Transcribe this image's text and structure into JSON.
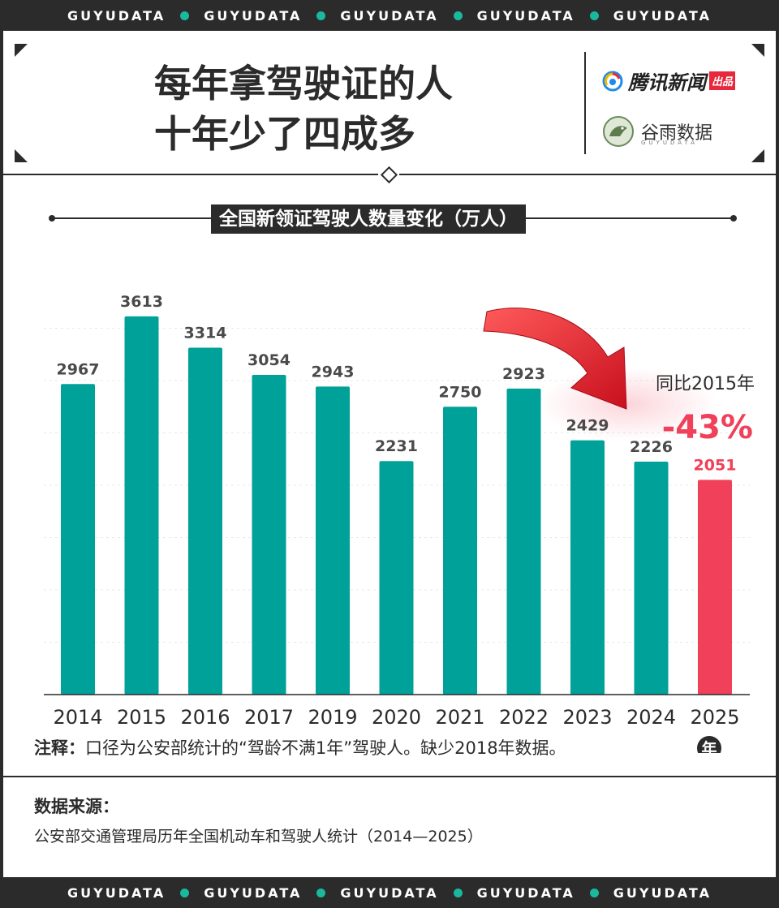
{
  "banner": {
    "word": "GUYUDATA"
  },
  "headline": {
    "line1": "每年拿驾驶证的人",
    "line2": "十年少了四成多"
  },
  "brands": {
    "tencent_name": "腾讯新闻",
    "tencent_tag": "出品",
    "guyu_name": "谷雨数据",
    "guyu_en": "GUYUDATA"
  },
  "colors": {
    "bar": "#00a199",
    "highlight": "#f0405a",
    "dark": "#2b2b2b",
    "bg": "#ffffff"
  },
  "chart_data": {
    "type": "bar",
    "title": "全国新领证驾驶人数量变化（万人）",
    "categories": [
      "2014",
      "2015",
      "2016",
      "2017",
      "2019",
      "2020",
      "2021",
      "2022",
      "2023",
      "2024",
      "2025"
    ],
    "values": [
      2967,
      3613,
      3314,
      3054,
      2943,
      2231,
      2750,
      2923,
      2429,
      2226,
      2051
    ],
    "highlight_index": 10,
    "xunit": "年",
    "ylim": [
      0,
      4000
    ],
    "grid": true,
    "annotation": {
      "line1": "同比2015年",
      "line2": "-43%",
      "icon": "down-arrow-icon"
    }
  },
  "note": {
    "label": "注释：",
    "text": "口径为公安部统计的“驾龄不满1年”驾驶人。缺少2018年数据。"
  },
  "source": {
    "label": "数据来源：",
    "text": "公安部交通管理局历年全国机动车和驾驶人统计（2014—2025）"
  }
}
